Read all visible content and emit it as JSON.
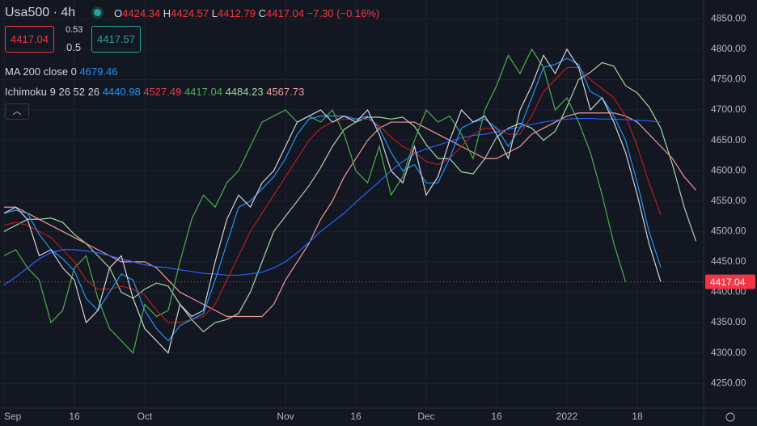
{
  "header": {
    "symbol": "Usa500",
    "interval": "4h",
    "o_label": "O",
    "open": "4424.34",
    "h_label": "H",
    "high": "4424.57",
    "l_label": "L",
    "low": "4412.79",
    "c_label": "C",
    "close": "4417.04",
    "change": "−7.30 (−0.16%)",
    "bid": "4417.04",
    "spread": "0.53",
    "lot": "0.5",
    "ask": "4417.57",
    "ma_label": "MA 200 close 0",
    "ma_value": "4679.46",
    "ichimoku_label": "Ichimoku 9 26 52 26",
    "ichimoku_values": [
      "4440.98",
      "4527.49",
      "4417.04",
      "4484.23",
      "4567.73"
    ]
  },
  "chart_data": {
    "type": "line",
    "categories": [
      "Sep",
      null,
      null,
      null,
      null,
      null,
      "16",
      null,
      null,
      null,
      null,
      null,
      "Oct",
      null,
      null,
      null,
      null,
      null,
      null,
      null,
      null,
      null,
      null,
      null,
      "Nov",
      null,
      null,
      null,
      null,
      null,
      "16",
      null,
      null,
      null,
      null,
      null,
      "Dec",
      null,
      null,
      null,
      null,
      null,
      "16",
      null,
      null,
      null,
      null,
      null,
      "2022",
      null,
      null,
      null,
      null,
      null,
      "18",
      null,
      null,
      null,
      null,
      null
    ],
    "series": [
      {
        "color": "#a5d6a7",
        "values": [
          4500,
          4510,
          4520,
          4520,
          4522,
          4515,
          4495,
          4480,
          4460,
          4440,
          4400,
          4390,
          4405,
          4415,
          4410,
          4380,
          4355,
          4335,
          4350,
          4355,
          4365,
          4400,
          4450,
          4500,
          4525,
          4550,
          4575,
          4605,
          4640,
          4668,
          4680,
          4688,
          4688,
          4685,
          4688,
          4673,
          4643,
          4620,
          4620,
          4598,
          4595,
          4620,
          4655,
          4670,
          4678,
          4670,
          4650,
          4665,
          4705,
          4750,
          4762,
          4778,
          4772,
          4740,
          4728,
          4705,
          4670,
          4610,
          4540,
          4484
        ]
      },
      {
        "color": "#ef9a9a",
        "values": [
          4540,
          4540,
          4530,
          4520,
          4510,
          4500,
          4490,
          4480,
          4470,
          4460,
          4450,
          4450,
          4450,
          4440,
          4420,
          4400,
          4390,
          4380,
          4370,
          4360,
          4360,
          4360,
          4360,
          4380,
          4420,
          4450,
          4480,
          4520,
          4550,
          4590,
          4620,
          4650,
          4670,
          4680,
          4680,
          4680,
          4670,
          4660,
          4650,
          4640,
          4630,
          4620,
          4620,
          4630,
          4640,
          4660,
          4670,
          4680,
          4690,
          4695,
          4695,
          4695,
          4695,
          4690,
          4680,
          4660,
          4640,
          4620,
          4590,
          4568
        ]
      },
      {
        "name": "MA 200 close 0",
        "color": "#2962ff",
        "values": [
          4412,
          4425,
          4440,
          4455,
          4465,
          4470,
          4470,
          4468,
          4465,
          4460,
          4455,
          4450,
          4445,
          4442,
          4440,
          4437,
          4434,
          4431,
          4430,
          4428,
          4428,
          4430,
          4433,
          4440,
          4450,
          4465,
          4482,
          4500,
          4515,
          4530,
          4548,
          4565,
          4582,
          4600,
          4615,
          4628,
          4636,
          4642,
          4648,
          4654,
          4658,
          4660,
          4664,
          4668,
          4672,
          4676,
          4680,
          4683,
          4685,
          4686,
          4686,
          4685,
          4685,
          4684,
          4683,
          4682,
          4680,
          null,
          null,
          null
        ]
      },
      {
        "color": "#4caf50",
        "values": [
          4460,
          4470,
          4440,
          4420,
          4350,
          4370,
          4440,
          4460,
          4390,
          4340,
          4320,
          4300,
          4380,
          4360,
          4370,
          4450,
          4520,
          4560,
          4540,
          4580,
          4600,
          4640,
          4680,
          4690,
          4700,
          4680,
          4690,
          4680,
          4700,
          4660,
          4600,
          4580,
          4640,
          4560,
          4590,
          4650,
          4700,
          4680,
          4690,
          4660,
          4620,
          4700,
          4740,
          4790,
          4760,
          4800,
          4770,
          4700,
          4720,
          4680,
          4630,
          4560,
          4480,
          4417.04,
          null,
          null,
          null,
          null,
          null,
          null
        ]
      },
      {
        "color": "#b71c1c",
        "values": [
          4510,
          4515,
          4510,
          4500,
          4490,
          4470,
          4450,
          4420,
          4405,
          4405,
          4410,
          4405,
          4395,
          4370,
          4350,
          4350,
          4355,
          4360,
          4380,
          4420,
          4460,
          4500,
          4530,
          4560,
          4590,
          4620,
          4650,
          4670,
          4680,
          4685,
          4685,
          4685,
          4675,
          4655,
          4640,
          4630,
          4615,
          4610,
          4620,
          4640,
          4660,
          4670,
          4670,
          4660,
          4660,
          4690,
          4730,
          4750,
          4770,
          4770,
          4750,
          4735,
          4720,
          4690,
          4640,
          4580,
          4527.49,
          null,
          null,
          null
        ]
      },
      {
        "color": "#2196f3",
        "values": [
          4530,
          4535,
          4530,
          4495,
          4470,
          4455,
          4435,
          4390,
          4370,
          4400,
          4430,
          4420,
          4370,
          4340,
          4320,
          4345,
          4355,
          4365,
          4420,
          4480,
          4540,
          4550,
          4570,
          4590,
          4620,
          4660,
          4685,
          4690,
          4690,
          4690,
          4685,
          4690,
          4670,
          4630,
          4600,
          4610,
          4580,
          4580,
          4620,
          4670,
          4680,
          4685,
          4670,
          4640,
          4670,
          4720,
          4770,
          4775,
          4785,
          4775,
          4730,
          4720,
          4690,
          4650,
          4580,
          4500,
          4440.98,
          null,
          null,
          null
        ]
      },
      {
        "color": "#d1d4dc",
        "values": [
          4530,
          4540,
          4520,
          4460,
          4470,
          4440,
          4420,
          4350,
          4370,
          4440,
          4460,
          4390,
          4340,
          4320,
          4300,
          4380,
          4360,
          4370,
          4450,
          4520,
          4560,
          4540,
          4580,
          4600,
          4640,
          4680,
          4690,
          4700,
          4680,
          4690,
          4680,
          4700,
          4660,
          4600,
          4580,
          4640,
          4560,
          4590,
          4650,
          4700,
          4680,
          4690,
          4660,
          4620,
          4700,
          4740,
          4790,
          4760,
          4800,
          4770,
          4700,
          4720,
          4680,
          4630,
          4560,
          4480,
          4417.04,
          null,
          null,
          null
        ]
      }
    ],
    "last_price": 4417.04,
    "ylim": [
      4209,
      4881
    ],
    "yticks": [
      {
        "value": 4250,
        "label": "4250.00"
      },
      {
        "value": 4300,
        "label": "4300.00"
      },
      {
        "value": 4350,
        "label": "4350.00"
      },
      {
        "value": 4400,
        "label": "4400.00"
      },
      {
        "value": 4450,
        "label": "4450.00"
      },
      {
        "value": 4500,
        "label": "4500.00"
      },
      {
        "value": 4550,
        "label": "4550.00"
      },
      {
        "value": 4600,
        "label": "4600.00"
      },
      {
        "value": 4650,
        "label": "4650.00"
      },
      {
        "value": 4700,
        "label": "4700.00"
      },
      {
        "value": 4750,
        "label": "4750.00"
      },
      {
        "value": 4800,
        "label": "4800.00"
      },
      {
        "value": 4850,
        "label": "4850.00"
      }
    ],
    "grid": true
  }
}
